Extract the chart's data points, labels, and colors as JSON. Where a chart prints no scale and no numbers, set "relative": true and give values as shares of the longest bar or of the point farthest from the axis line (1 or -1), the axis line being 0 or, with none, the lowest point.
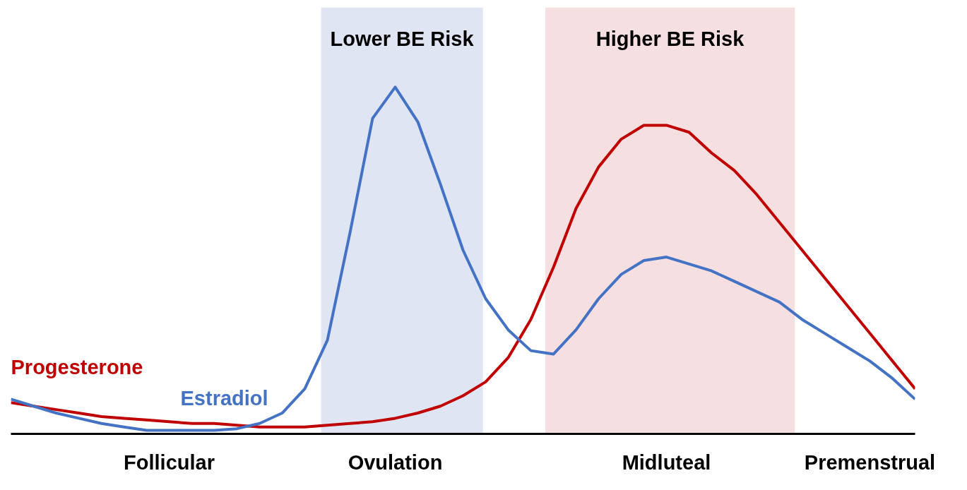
{
  "chart_data": {
    "type": "line",
    "relative": true,
    "grid": false,
    "legend": false,
    "line_style": "solid",
    "marker": "none",
    "categories": [
      null,
      null,
      null,
      null,
      null,
      null,
      null,
      "Follicular",
      null,
      null,
      null,
      null,
      null,
      null,
      null,
      null,
      null,
      "Ovulation",
      null,
      null,
      null,
      null,
      null,
      null,
      null,
      null,
      null,
      null,
      null,
      "Midluteal",
      null,
      null,
      null,
      null,
      null,
      null,
      null,
      null,
      "Premenstrual",
      null,
      null
    ],
    "annotations": [
      "Lower BE Risk",
      "Higher BE Risk"
    ],
    "series": [
      {
        "name": "Progesterone",
        "color": "#c00000",
        "values": [
          0.09,
          0.08,
          0.07,
          0.06,
          0.05,
          0.045,
          0.04,
          0.035,
          0.03,
          0.03,
          0.025,
          0.02,
          0.02,
          0.02,
          0.025,
          0.03,
          0.035,
          0.045,
          0.06,
          0.08,
          0.11,
          0.15,
          0.22,
          0.33,
          0.48,
          0.65,
          0.77,
          0.85,
          0.89,
          0.89,
          0.87,
          0.81,
          0.76,
          0.69,
          0.61,
          0.53,
          0.45,
          0.37,
          0.29,
          0.21,
          0.13
        ]
      },
      {
        "name": "Estradiol",
        "color": "#4472c4",
        "values": [
          0.1,
          0.08,
          0.06,
          0.045,
          0.03,
          0.02,
          0.01,
          0.01,
          0.01,
          0.01,
          0.015,
          0.03,
          0.06,
          0.13,
          0.27,
          0.58,
          0.91,
          1.0,
          0.9,
          0.72,
          0.53,
          0.39,
          0.3,
          0.24,
          0.23,
          0.3,
          0.39,
          0.46,
          0.5,
          0.51,
          0.49,
          0.47,
          0.44,
          0.41,
          0.38,
          0.33,
          0.29,
          0.25,
          0.21,
          0.16,
          0.1
        ]
      }
    ]
  }
}
